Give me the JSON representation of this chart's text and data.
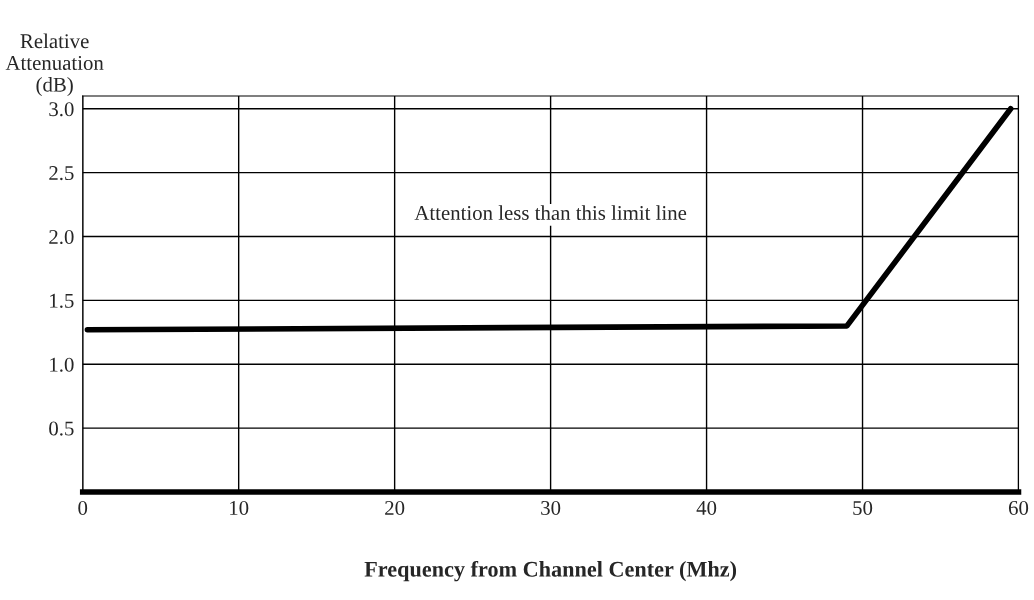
{
  "chart_data": {
    "type": "line",
    "xlabel": "Frequency from Channel Center (Mhz)",
    "ylabel": "Relative\nAttenuation\n(dB)",
    "x": [
      0.3,
      49,
      59.5
    ],
    "series": [
      {
        "color": "#000000",
        "values": [
          1.27,
          1.3,
          3.0
        ]
      }
    ],
    "xlim": [
      0,
      60
    ],
    "ylim": [
      0,
      3.1
    ],
    "xticks": [
      0,
      10,
      20,
      30,
      40,
      50,
      60
    ],
    "yticks": [
      {
        "value": 0,
        "label": null
      },
      0.5,
      {
        "value": 1,
        "label": "1.0"
      },
      1.5,
      {
        "value": 2,
        "label": "2.0"
      },
      2.5,
      {
        "value": 3,
        "label": "3.0"
      }
    ],
    "grid": true,
    "marker": "none",
    "line_style": "solid",
    "annotations": [
      "Attention less than this limit line"
    ]
  }
}
